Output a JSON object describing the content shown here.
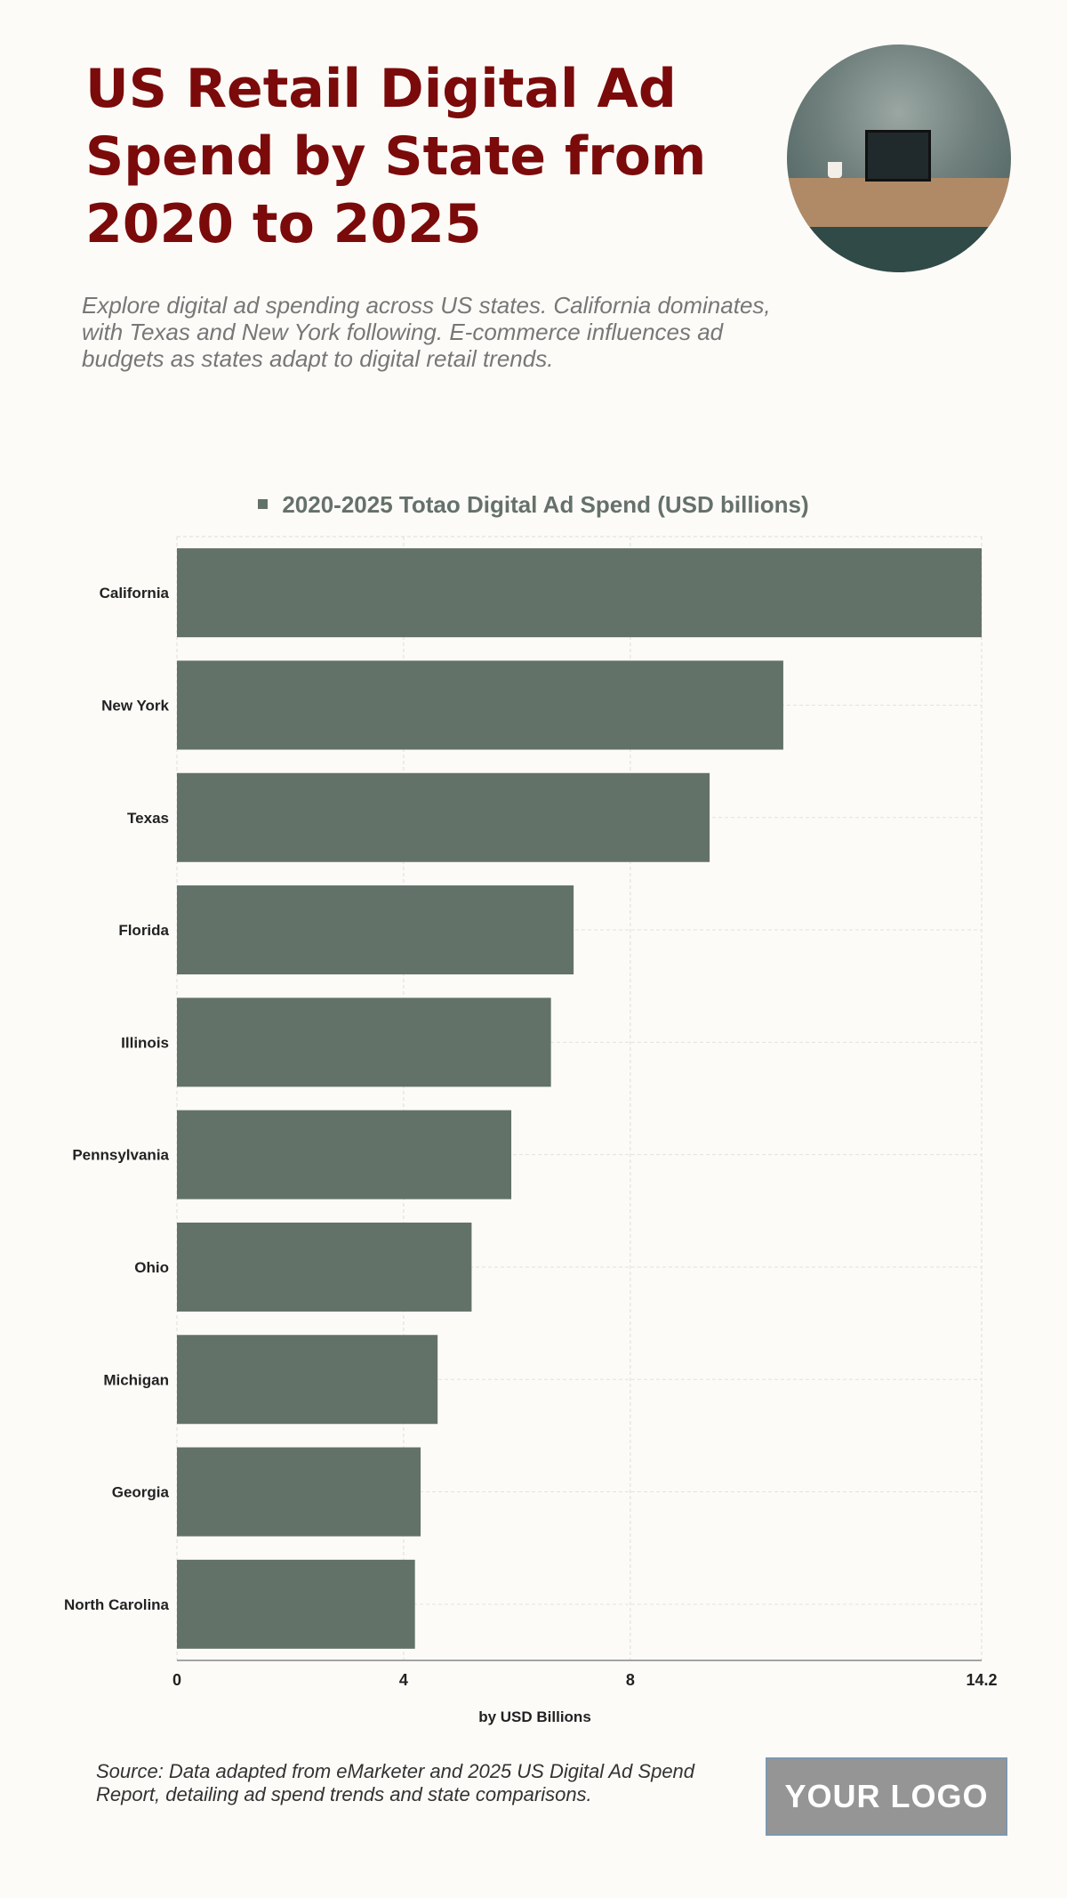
{
  "header": {
    "title": "US Retail Digital Ad Spend by State from 2020 to 2025",
    "subtitle": "Explore digital ad spending across US states. California dominates, with Texas and New York following. E-commerce influences ad budgets as states adapt to digital retail trends."
  },
  "footer": {
    "source": "Source: Data adapted from eMarketer and 2025 US Digital Ad Spend Report, detailing ad spend trends and state comparisons.",
    "logo": "YOUR LOGO"
  },
  "colors": {
    "bar": "#637268",
    "title": "#7b0a0a"
  },
  "chart_data": {
    "type": "bar",
    "orientation": "horizontal",
    "legend": "2020-2025 Totao Digital Ad Spend (USD billions)",
    "legend_position": "top-center",
    "categories": [
      "California",
      "New York",
      "Texas",
      "Florida",
      "Illinois",
      "Pennsylvania",
      "Ohio",
      "Michigan",
      "Georgia",
      "North Carolina"
    ],
    "values": [
      14.2,
      10.7,
      9.4,
      7.0,
      6.6,
      5.9,
      5.2,
      4.6,
      4.3,
      4.2
    ],
    "xlabel": "by USD Billions",
    "ylabel": "",
    "xlim": [
      0,
      14.2
    ],
    "xticks": [
      "0",
      "4",
      "8",
      "14.2"
    ],
    "grid": true
  }
}
